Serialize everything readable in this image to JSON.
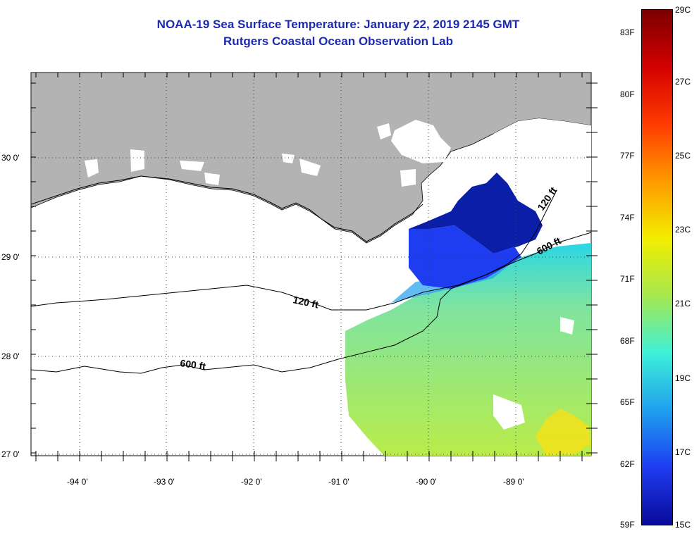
{
  "title": "NOAA-19 Sea Surface Temperature:  January 22, 2019 2145 GMT",
  "subtitle": "Rutgers Coastal Ocean Observation Lab",
  "lat_labels": [
    "30 0'",
    "29 0'",
    "28 0'",
    "27 0'"
  ],
  "lon_labels": [
    "-94 0'",
    "-93 0'",
    "-92 0'",
    "-91 0'",
    "-90 0'",
    "-89 0'"
  ],
  "contour_labels": [
    "120 ft",
    "600 ft",
    "120 ft",
    "600 ft"
  ],
  "colorbar": {
    "fahrenheit_labels": [
      "83F",
      "80F",
      "77F",
      "74F",
      "71F",
      "68F",
      "65F",
      "62F",
      "59F"
    ],
    "celsius_labels": [
      "29C",
      "27C",
      "25C",
      "23C",
      "21C",
      "19C",
      "17C",
      "15C"
    ],
    "colors": [
      "#7a0000",
      "#d40000",
      "#ff3b00",
      "#ff9a00",
      "#f2ee00",
      "#a6e84e",
      "#3ef0d8",
      "#1fa0ee",
      "#1e3cf0",
      "#0a0a9a"
    ]
  },
  "colors": {
    "land": "#b3b3b3",
    "water": "#ffffff",
    "title": "#1c2bb0"
  }
}
